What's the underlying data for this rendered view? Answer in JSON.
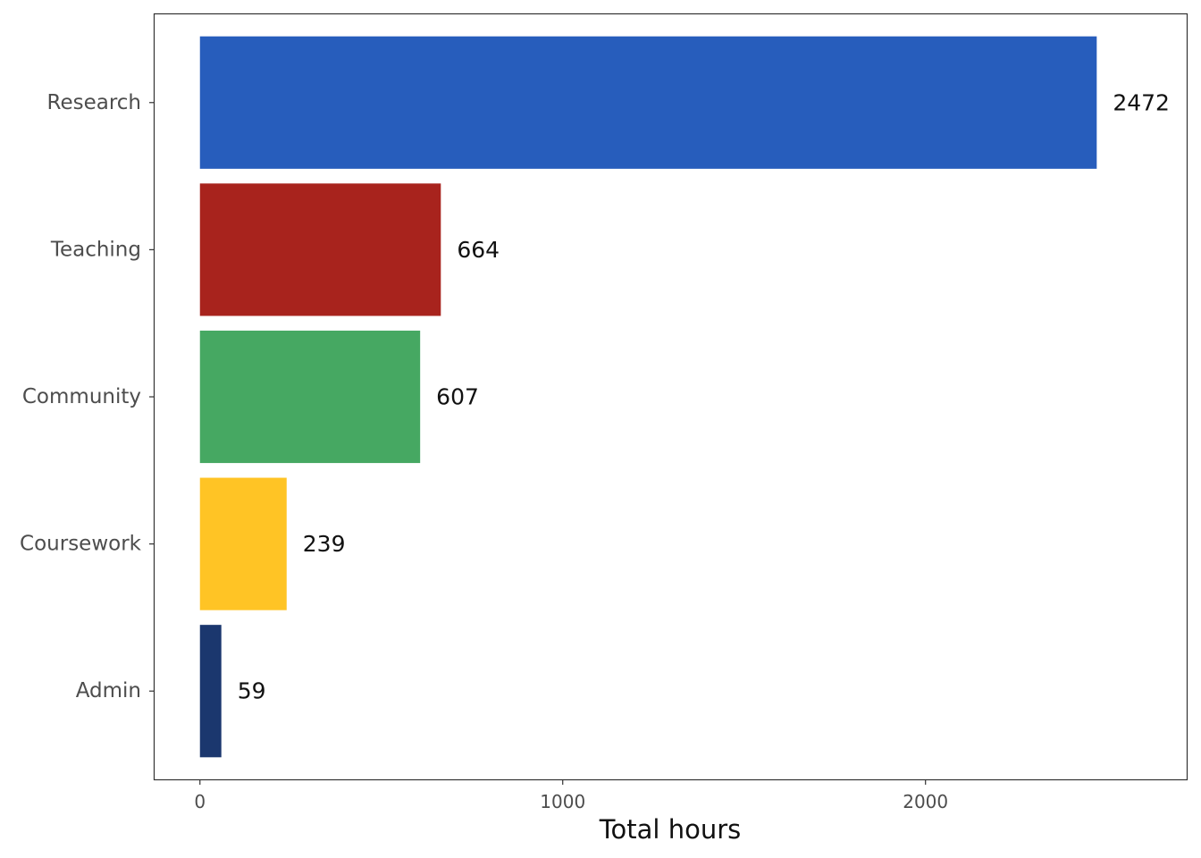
{
  "chart_data": {
    "type": "bar",
    "orientation": "horizontal",
    "categories": [
      "Research",
      "Teaching",
      "Community",
      "Coursework",
      "Admin"
    ],
    "values": [
      2472,
      664,
      607,
      239,
      59
    ],
    "value_labels": [
      "2472",
      "664",
      "607",
      "239",
      "59"
    ],
    "colors": [
      "#275DBC",
      "#A8231D",
      "#46A862",
      "#FFC425",
      "#1B376E"
    ],
    "xlabel": "Total hours",
    "xlim": [
      -125,
      2720
    ],
    "xticks": [
      0,
      1000,
      2000
    ],
    "xtick_labels": [
      "0",
      "1000",
      "2000"
    ],
    "grid": false,
    "legend": "none"
  }
}
